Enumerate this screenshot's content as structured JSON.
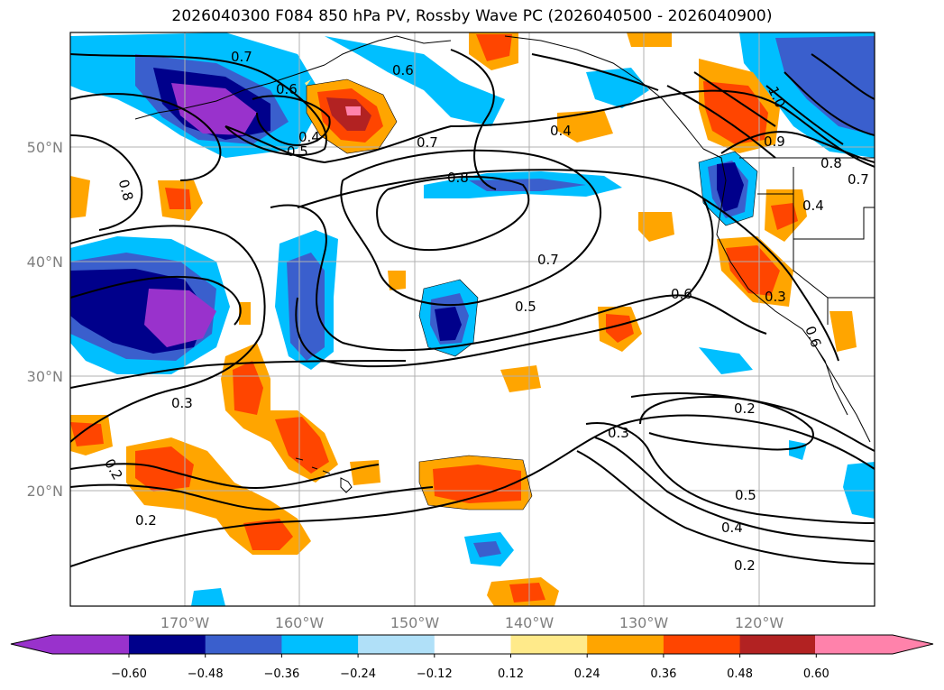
{
  "title": "2026040300 F084 850 hPa PV, Rossby Wave PC (2026040500 - 2026040900)",
  "lat_labels": [
    "50°N",
    "40°N",
    "30°N",
    "20°N"
  ],
  "lon_labels": [
    "170°W",
    "160°W",
    "150°W",
    "140°W",
    "130°W",
    "120°W"
  ],
  "colorbar": {
    "ticks": [
      "−0.60",
      "−0.48",
      "−0.36",
      "−0.24",
      "−0.12",
      "0.12",
      "0.24",
      "0.36",
      "0.48",
      "0.60"
    ],
    "colors": [
      "#9932cc",
      "#00008b",
      "#3a5fcd",
      "#00bfff",
      "#b0e0f8",
      "#ffffff",
      "#ffea8a",
      "#ffa500",
      "#ff4500",
      "#b22222",
      "#ff82ab"
    ]
  },
  "contour_labels": [
    "0.7",
    "0.6",
    "0.6",
    "0.4",
    "0.5",
    "0.8",
    "0.7",
    "0.8",
    "0.4",
    "0.9",
    "0.8",
    "0.7",
    "0.4",
    "1.0",
    "0.7",
    "0.6",
    "0.5",
    "0.3",
    "0.3",
    "0.2",
    "0.3",
    "0.5",
    "0.4",
    "0.2",
    "0.2",
    "0.2",
    "0.6"
  ],
  "icons": [
    "coastline",
    "state-borders"
  ]
}
